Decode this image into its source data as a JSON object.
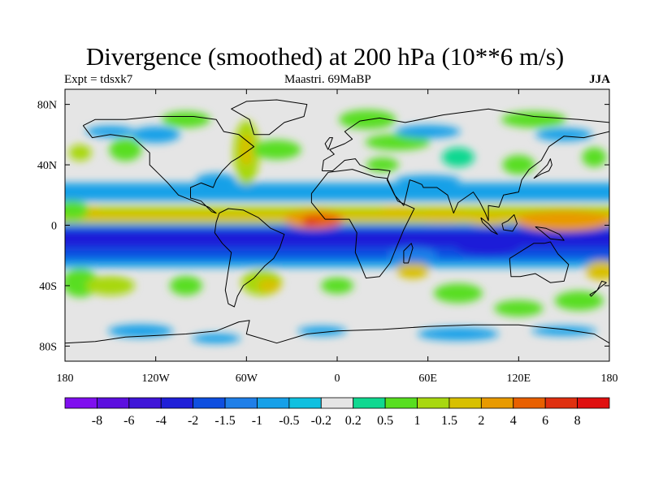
{
  "chart_data": {
    "type": "heatmap",
    "title": "Divergence (smoothed) at 200 hPa (10**6 m/s)",
    "left_label": "Expt = tdsxk7",
    "center_label": "Maastri.  69MaBP",
    "right_label": "JJA",
    "x_ticks": [
      "180",
      "120W",
      "60W",
      "0",
      "60E",
      "120E",
      "180"
    ],
    "y_ticks": [
      "80N",
      "40N",
      "0",
      "40S",
      "80S"
    ],
    "xlim": [
      -180,
      180
    ],
    "ylim": [
      -90,
      90
    ],
    "x_tick_values": [
      -180,
      -120,
      -60,
      0,
      60,
      120,
      180
    ],
    "y_tick_values": [
      80,
      40,
      0,
      -40,
      -80
    ],
    "colorbar": {
      "colors": [
        "#7f0fef",
        "#5c0fdf",
        "#3f15d8",
        "#1f1fd8",
        "#0f4fe0",
        "#1f7fe8",
        "#16a0e8",
        "#10c0e0",
        "#e5e5e5",
        "#10d890",
        "#58de20",
        "#a8d810",
        "#d8c000",
        "#e89a00",
        "#e86000",
        "#e03010",
        "#e01010"
      ],
      "labels": [
        "-8",
        "-6",
        "-4",
        "-2",
        "-1.5",
        "-1",
        "-0.5",
        "-0.2",
        "0.2",
        "0.5",
        "1",
        "1.5",
        "2",
        "4",
        "6",
        "8"
      ]
    },
    "features": [
      {
        "name": "equatorial-convergence-band",
        "lat": -8,
        "lon_range": [
          -180,
          180
        ],
        "level": -2
      },
      {
        "name": "itcz-divergence-band",
        "lat": 6,
        "lon_range": [
          -180,
          180
        ],
        "level": 2
      },
      {
        "name": "divergence-max-atlantic",
        "lat": 3,
        "lon": -15,
        "level": 6
      },
      {
        "name": "divergence-max-west-pacific",
        "lat": 2,
        "lon": 150,
        "level": 4
      }
    ]
  }
}
